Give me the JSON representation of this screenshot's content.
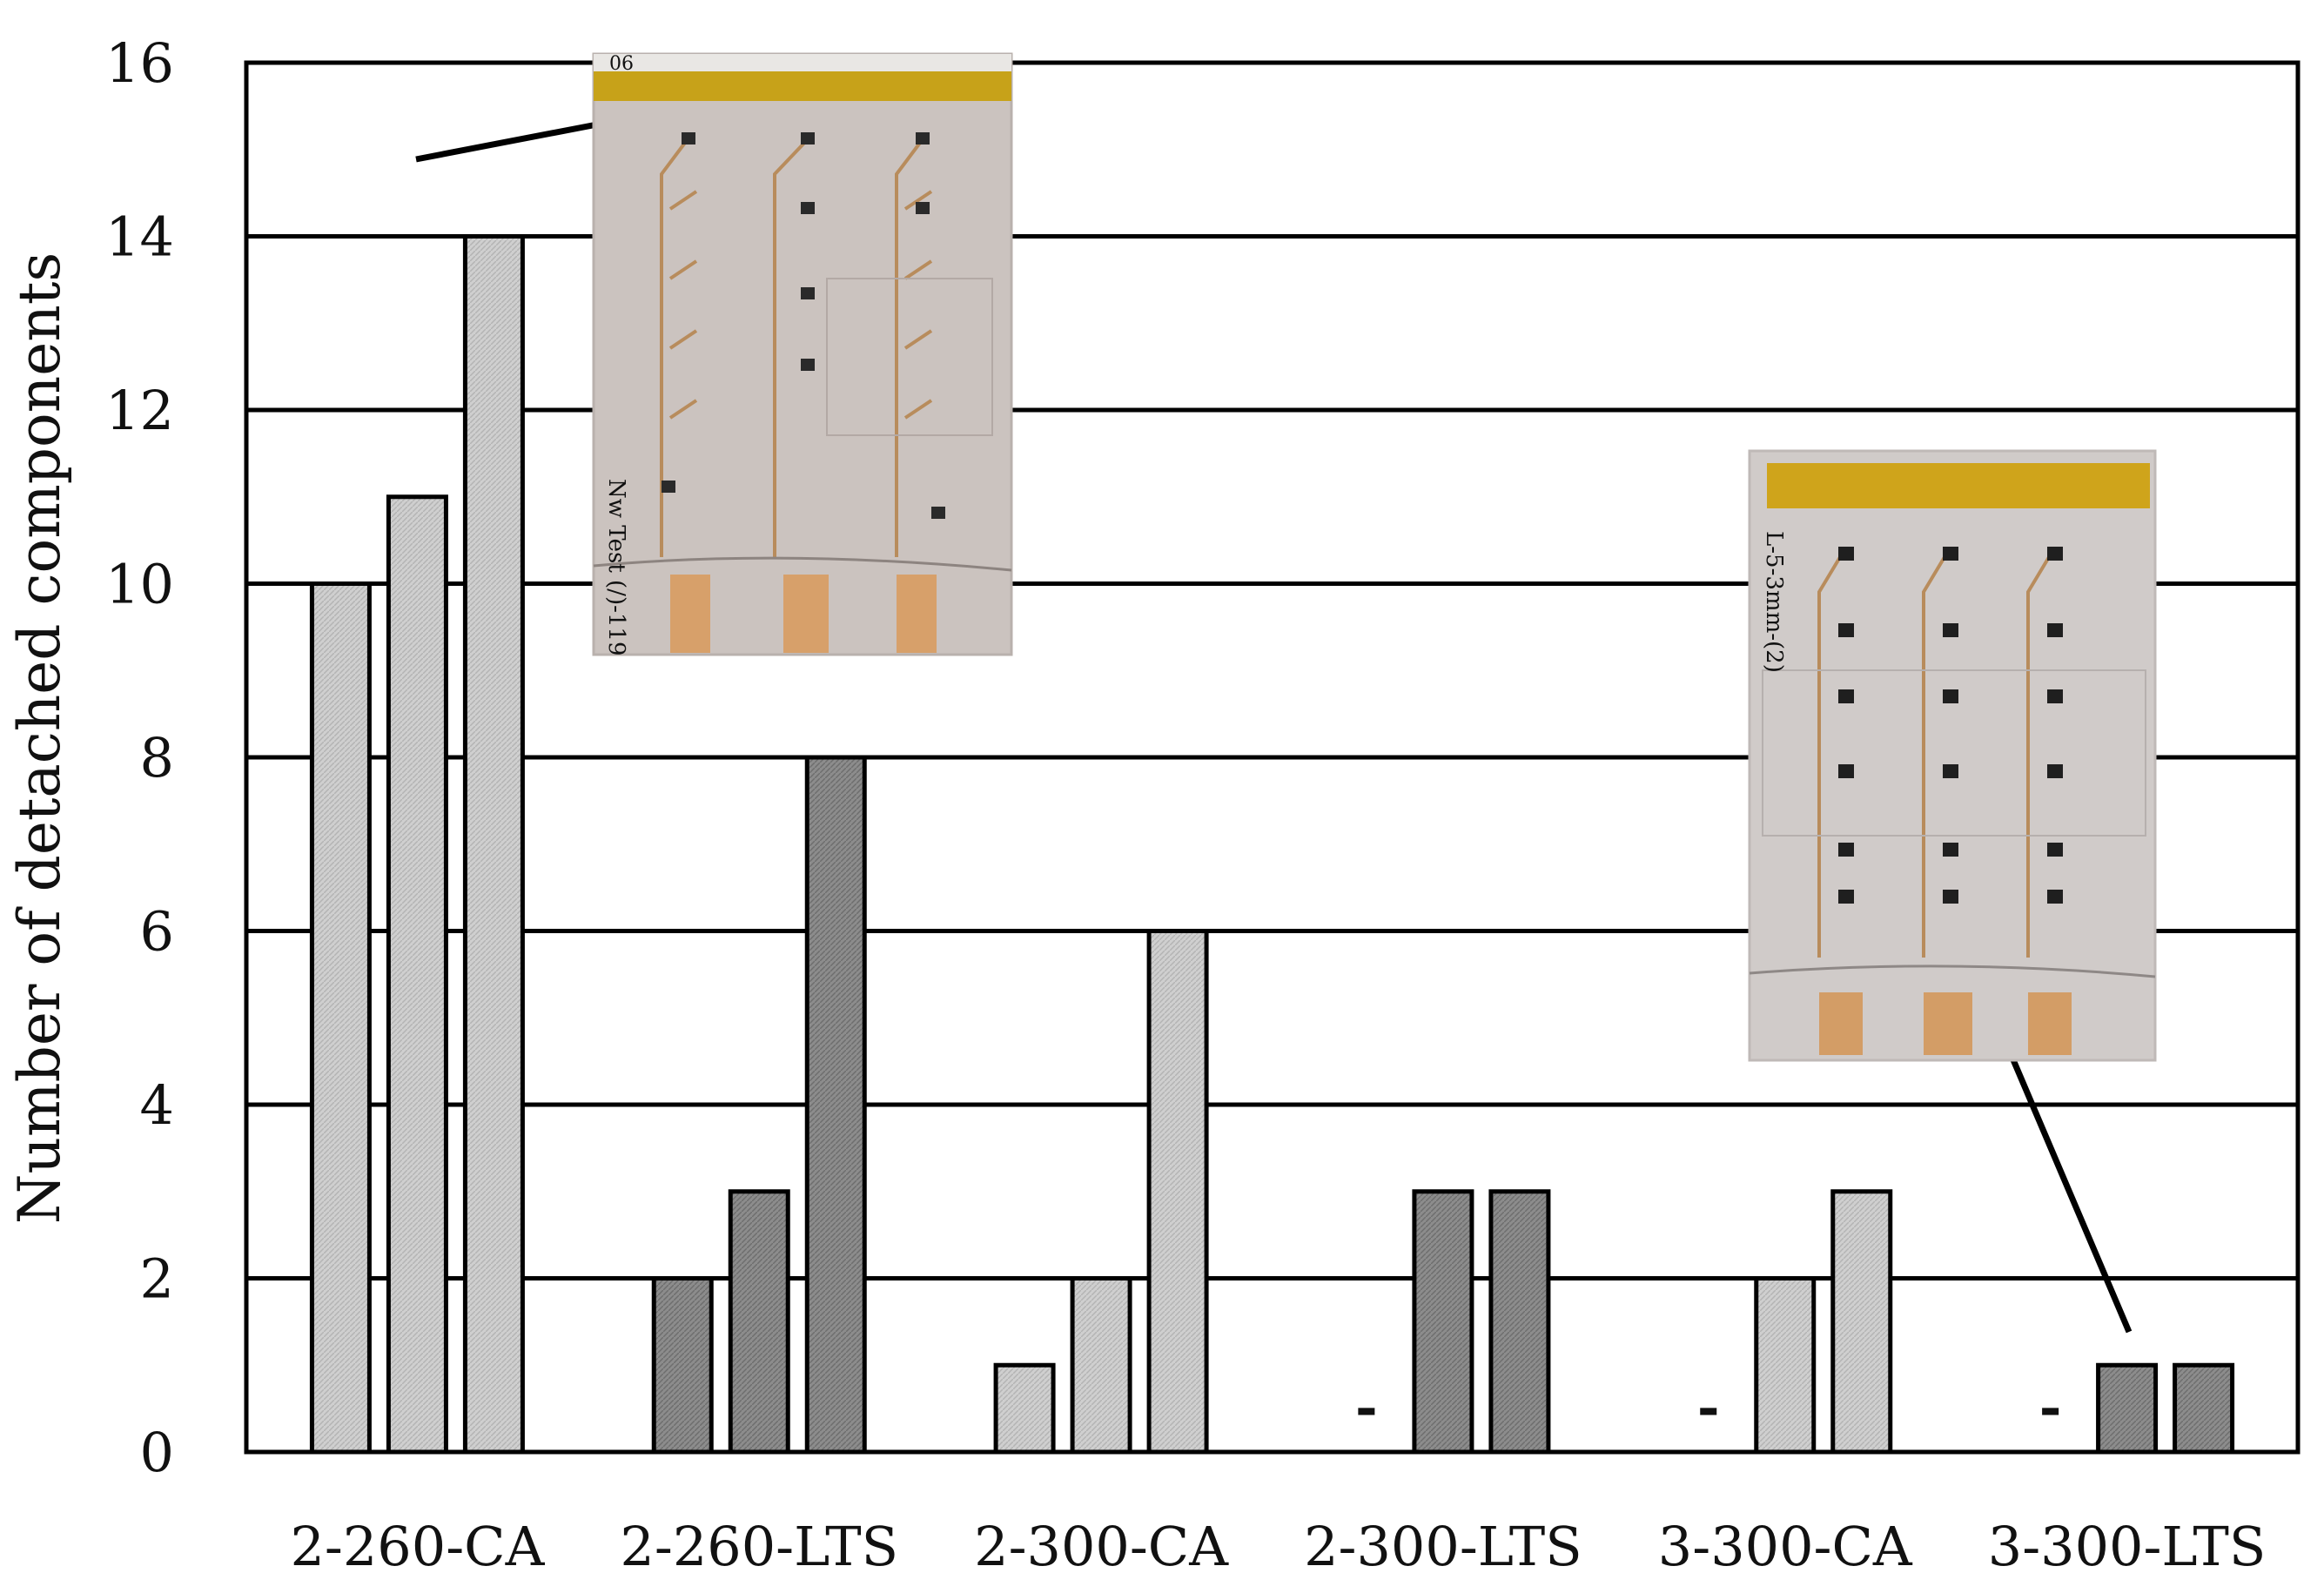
{
  "chart_data": {
    "type": "bar",
    "ylabel": "Number of detached components",
    "xlabel": "",
    "title": "",
    "ylim": [
      0,
      16
    ],
    "yticks": [
      0,
      2,
      4,
      6,
      8,
      10,
      12,
      14,
      16
    ],
    "grid": true,
    "categories": [
      "2-260-CA",
      "2-260-LTS",
      "2-300-CA",
      "2-300-LTS",
      "3-300-CA",
      "3-300-LTS"
    ],
    "groups": [
      {
        "category": "2-260-CA",
        "values": [
          10,
          11,
          14
        ],
        "shade": "light"
      },
      {
        "category": "2-260-LTS",
        "values": [
          2,
          3,
          8
        ],
        "shade": "dark"
      },
      {
        "category": "2-300-CA",
        "values": [
          1,
          2,
          6
        ],
        "shade": "light"
      },
      {
        "category": "2-300-LTS",
        "values": [
          null,
          3,
          3
        ],
        "shade": "dark"
      },
      {
        "category": "3-300-CA",
        "values": [
          null,
          2,
          3
        ],
        "shade": "light"
      },
      {
        "category": "3-300-LTS",
        "values": [
          null,
          1,
          1
        ],
        "shade": "dark"
      }
    ],
    "missing_marker": "-",
    "colors": {
      "light": "#c8c8c8",
      "dark": "#8a8a8a",
      "grid": "#000000",
      "bar_stroke": "#000000"
    },
    "insets": [
      {
        "name": "photo-2-260-CA",
        "points_to": "2-260-CA"
      },
      {
        "name": "photo-3-300-LTS",
        "points_to": "3-300-LTS"
      }
    ]
  }
}
